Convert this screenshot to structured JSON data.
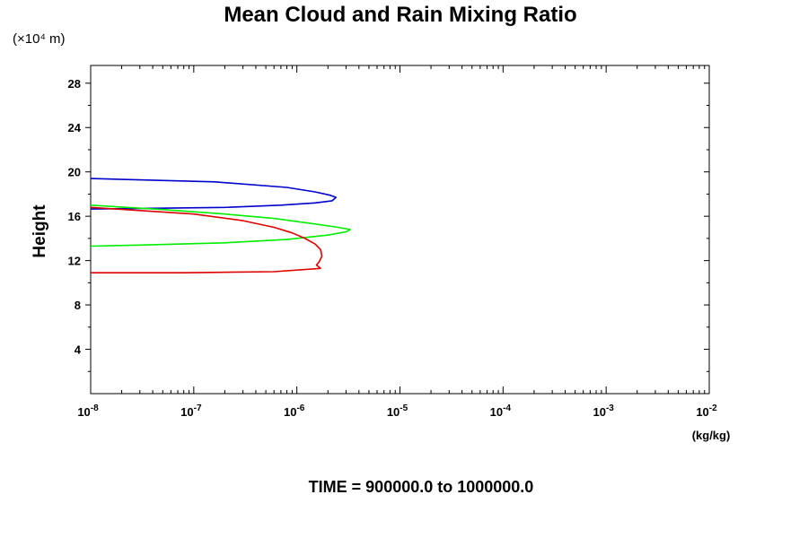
{
  "chart_data": {
    "type": "line",
    "title": "Mean Cloud and Rain Mixing Ratio",
    "ylabel": "Height",
    "yunit": "(×10⁴ m)",
    "xunit": "(kg/kg)",
    "footer": "TIME = 900000.0 to 1000000.0",
    "xscale": "log",
    "xlim": [
      1e-08,
      0.01
    ],
    "ylim": [
      0,
      29.6
    ],
    "yticks": [
      4,
      8,
      12,
      16,
      20,
      24,
      28
    ],
    "xticks": [
      {
        "value": 1e-08,
        "base": "10",
        "exp": "-8"
      },
      {
        "value": 1e-07,
        "base": "10",
        "exp": "-7"
      },
      {
        "value": 1e-06,
        "base": "10",
        "exp": "-6"
      },
      {
        "value": 1e-05,
        "base": "10",
        "exp": "-5"
      },
      {
        "value": 0.0001,
        "base": "10",
        "exp": "-4"
      },
      {
        "value": 0.001,
        "base": "10",
        "exp": "-3"
      },
      {
        "value": 0.01,
        "base": "10",
        "exp": "-2"
      }
    ],
    "grid": false,
    "series": [
      {
        "color": "#0000cc",
        "points": [
          [
            1e-08,
            19.4
          ],
          [
            1.6e-07,
            19.1
          ],
          [
            8e-07,
            18.6
          ],
          [
            1.5e-06,
            18.2
          ],
          [
            2.1e-06,
            17.9
          ],
          [
            2.4e-06,
            17.7
          ],
          [
            2.2e-06,
            17.4
          ],
          [
            1.5e-06,
            17.2
          ],
          [
            7e-07,
            17.0
          ],
          [
            2e-07,
            16.8
          ],
          [
            1e-08,
            16.65
          ]
        ]
      },
      {
        "color": "#00ee00",
        "points": [
          [
            1e-08,
            17.0
          ],
          [
            5e-08,
            16.6
          ],
          [
            2e-07,
            16.2
          ],
          [
            6e-07,
            15.8
          ],
          [
            1.5e-06,
            15.3
          ],
          [
            2.5e-06,
            15.0
          ],
          [
            3.3e-06,
            14.8
          ],
          [
            3e-06,
            14.6
          ],
          [
            2e-06,
            14.3
          ],
          [
            8e-07,
            13.9
          ],
          [
            2e-07,
            13.6
          ],
          [
            3e-08,
            13.4
          ],
          [
            1e-08,
            13.3
          ]
        ]
      },
      {
        "color": "#dd0000",
        "points": [
          [
            1e-08,
            16.8
          ],
          [
            1e-07,
            16.2
          ],
          [
            3e-07,
            15.6
          ],
          [
            6e-07,
            15.0
          ],
          [
            9e-07,
            14.5
          ],
          [
            1.2e-06,
            14.0
          ],
          [
            1.5e-06,
            13.5
          ],
          [
            1.7e-06,
            13.0
          ],
          [
            1.75e-06,
            12.4
          ],
          [
            1.65e-06,
            11.9
          ],
          [
            1.55e-06,
            11.6
          ],
          [
            1.7e-06,
            11.3
          ],
          [
            6e-07,
            11.0
          ],
          [
            8e-08,
            10.9
          ],
          [
            1e-08,
            10.9
          ]
        ]
      }
    ]
  }
}
